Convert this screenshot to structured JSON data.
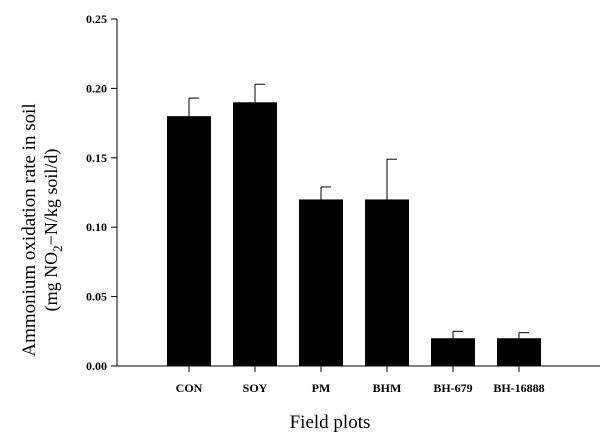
{
  "chart_data": {
    "type": "bar",
    "title": "",
    "xlabel": "Field plots",
    "ylabel": {
      "line1": "Ammonium oxidation rate in soil",
      "line2_prefix": "(mg NO",
      "line2_sub": "2",
      "line2_suffix": "−N/kg soil/d)"
    },
    "categories": [
      "CON",
      "SOY",
      "PM",
      "BHM",
      "BH-679",
      "BH-16888"
    ],
    "values": [
      0.18,
      0.19,
      0.12,
      0.12,
      0.02,
      0.02
    ],
    "errors": [
      0.013,
      0.013,
      0.009,
      0.029,
      0.005,
      0.004
    ],
    "ylim": [
      0,
      0.25
    ],
    "yticks": [
      "0.00",
      "0.05",
      "0.10",
      "0.15",
      "0.20",
      "0.25"
    ],
    "grid": false,
    "bar_color": "#000000"
  }
}
